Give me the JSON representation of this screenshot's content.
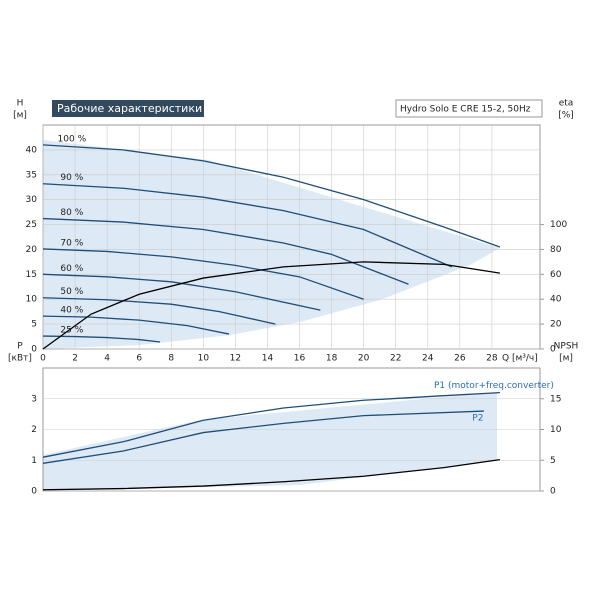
{
  "title": "Рабочие характеристики",
  "model": "Hydro Solo E CRE 15-2, 50Hz",
  "chart_data": [
    {
      "type": "line",
      "xlabel": "Q [м³/ч]",
      "ylabel": "H",
      "yunit": "[м]",
      "y2label": "eta",
      "y2unit": "[%]",
      "xlim": [
        0,
        31
      ],
      "xticks": [
        0,
        2,
        4,
        6,
        8,
        10,
        12,
        14,
        16,
        18,
        20,
        22,
        24,
        26,
        28
      ],
      "ylim": [
        0,
        45
      ],
      "yticks": [
        0,
        5,
        10,
        15,
        20,
        25,
        30,
        35,
        40
      ],
      "y2lim": [
        0,
        180
      ],
      "y2ticks": [
        0,
        20,
        40,
        60,
        80,
        100
      ],
      "grid": true,
      "series": [
        {
          "name": "100 %",
          "color": "#1f4e79",
          "x": [
            0,
            5,
            10,
            15,
            20,
            25,
            28.5
          ],
          "values": [
            41,
            40,
            37.8,
            34.5,
            30,
            24.5,
            20.5
          ]
        },
        {
          "name": "90 %",
          "color": "#1f4e79",
          "x": [
            0,
            5,
            10,
            15,
            20,
            25.5
          ],
          "values": [
            33.2,
            32.3,
            30.5,
            27.8,
            24,
            16.5
          ]
        },
        {
          "name": "80 %",
          "color": "#1f4e79",
          "x": [
            0,
            5,
            10,
            15,
            18,
            22.8
          ],
          "values": [
            26.2,
            25.5,
            24,
            21.3,
            19,
            13
          ]
        },
        {
          "name": "70 %",
          "color": "#1f4e79",
          "x": [
            0,
            4,
            8,
            12,
            16,
            20
          ],
          "values": [
            20.1,
            19.6,
            18.5,
            16.8,
            14.5,
            10
          ]
        },
        {
          "name": "60 %",
          "color": "#1f4e79",
          "x": [
            0,
            4,
            8,
            12,
            17.3
          ],
          "values": [
            15,
            14.5,
            13.5,
            11.5,
            7.8
          ]
        },
        {
          "name": "50 %",
          "color": "#1f4e79",
          "x": [
            0,
            4,
            8,
            11,
            14.5
          ],
          "values": [
            10.3,
            9.9,
            9,
            7.5,
            5
          ]
        },
        {
          "name": "40 %",
          "color": "#1f4e79",
          "x": [
            0,
            3,
            6,
            9,
            11.6
          ],
          "values": [
            6.6,
            6.4,
            5.8,
            4.7,
            3
          ]
        },
        {
          "name": "25 %",
          "color": "#1f4e79",
          "x": [
            0,
            2,
            4,
            6,
            7.3
          ],
          "values": [
            2.6,
            2.5,
            2.3,
            1.9,
            1.4
          ]
        },
        {
          "name": "eta",
          "color": "#000000",
          "axis": "y2",
          "x": [
            0,
            3,
            6,
            10,
            15,
            20,
            25,
            28.5
          ],
          "values": [
            0,
            28,
            44,
            57,
            66,
            70,
            68,
            61
          ]
        }
      ]
    },
    {
      "type": "line",
      "ylabel": "P",
      "yunit": "[кВт]",
      "y2label": "NPSH",
      "y2unit": "[м]",
      "xlim": [
        0,
        31
      ],
      "ylim": [
        0,
        4
      ],
      "yticks": [
        0,
        1,
        2,
        3
      ],
      "y2lim": [
        0,
        20
      ],
      "y2ticks": [
        0,
        5,
        10,
        15
      ],
      "grid": true,
      "series": [
        {
          "name": "P1 (motor+freq.converter)",
          "color": "#1f4e79",
          "x": [
            0,
            5,
            10,
            15,
            20,
            25,
            28.5
          ],
          "values": [
            1.1,
            1.6,
            2.3,
            2.7,
            2.95,
            3.1,
            3.2
          ]
        },
        {
          "name": "P2",
          "color": "#1f4e79",
          "x": [
            0,
            5,
            10,
            15,
            20,
            27.5
          ],
          "values": [
            0.9,
            1.3,
            1.9,
            2.2,
            2.45,
            2.6
          ]
        },
        {
          "name": "NPSH",
          "color": "#000000",
          "axis": "y2",
          "x": [
            0,
            5,
            10,
            15,
            20,
            25,
            28.5
          ],
          "values": [
            0.2,
            0.4,
            0.8,
            1.5,
            2.4,
            3.8,
            5.1
          ]
        }
      ]
    }
  ]
}
